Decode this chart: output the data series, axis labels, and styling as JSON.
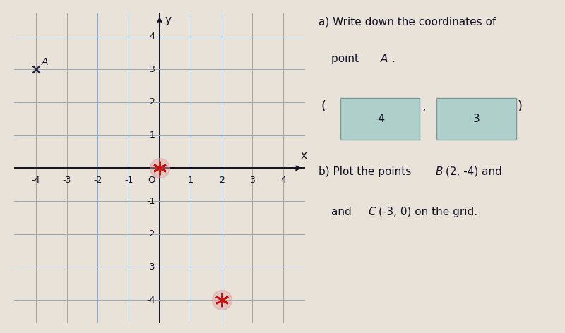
{
  "grid_xlim": [
    -4.7,
    4.7
  ],
  "grid_ylim": [
    -4.7,
    4.7
  ],
  "grid_xticks": [
    -4,
    -3,
    -2,
    -1,
    0,
    1,
    2,
    3,
    4
  ],
  "grid_yticks": [
    -4,
    -3,
    -2,
    -1,
    0,
    1,
    2,
    3,
    4
  ],
  "point_A": [
    -4,
    3
  ],
  "point_A_label": "A",
  "point_B": [
    2,
    -4
  ],
  "point_C": [
    -3,
    0
  ],
  "red_marker_color": "#cc1111",
  "red_halo_color": "#dda0a0",
  "point_A_color": "#222244",
  "bg_color": "#e8e2d8",
  "grid_color": "#8fa8bc",
  "axis_color": "#111122",
  "text_color": "#111122",
  "answer_box_color": "#aecfca",
  "answer_box_edge": "#7a9a96",
  "part_a_answer_x": "-4",
  "part_a_answer_y": "3",
  "xlabel": "x",
  "ylabel": "y"
}
